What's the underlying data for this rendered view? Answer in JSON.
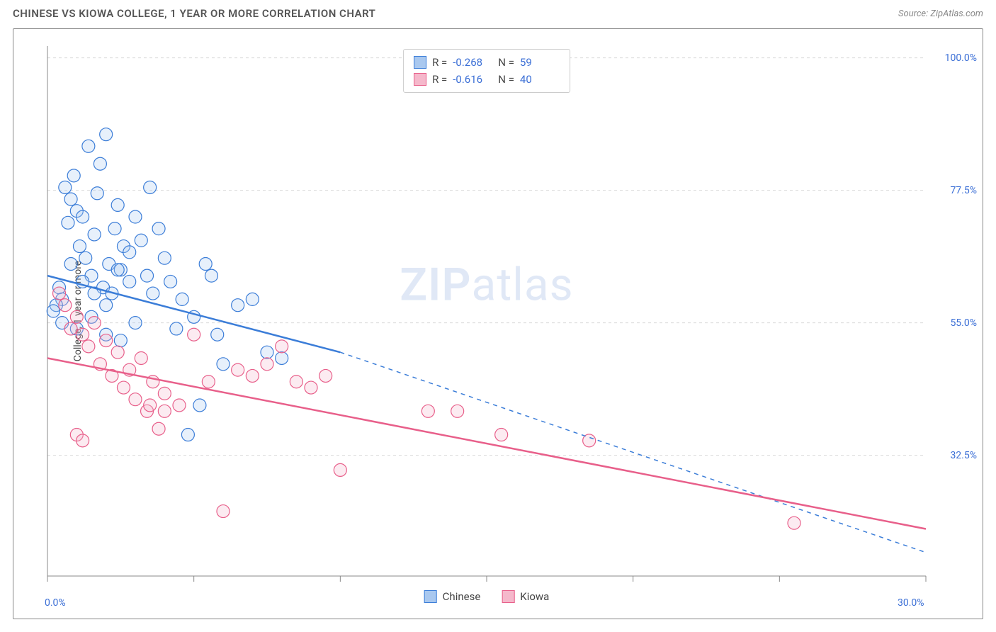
{
  "header": {
    "title": "CHINESE VS KIOWA COLLEGE, 1 YEAR OR MORE CORRELATION CHART",
    "source": "Source: ZipAtlas.com"
  },
  "chart": {
    "type": "scatter",
    "ylabel": "College, 1 year or more",
    "xlim": [
      0,
      30
    ],
    "ylim": [
      12,
      102
    ],
    "xticks": [
      0,
      5,
      10,
      15,
      20,
      25,
      30
    ],
    "xtick_labels_shown": {
      "0": "0.0%",
      "30": "30.0%"
    },
    "yticks": [
      32.5,
      55.0,
      77.5,
      100.0
    ],
    "ytick_labels": [
      "32.5%",
      "55.0%",
      "77.5%",
      "100.0%"
    ],
    "grid_color": "#d9d9d9",
    "border_color": "#888888",
    "background_color": "#ffffff",
    "axis_label_color": "#3b6fd6",
    "marker_radius": 9,
    "marker_stroke_width": 1.2,
    "marker_fill_opacity": 0.28,
    "line_width": 2.5,
    "watermark": "ZIPatlas",
    "series": [
      {
        "name": "Chinese",
        "color": "#3b7dd8",
        "fill": "#a9c8ef",
        "R": "-0.268",
        "N": "59",
        "trend": {
          "x1": 0,
          "y1": 63,
          "x2": 10,
          "y2": 50,
          "dash_to_x": 30,
          "dash_to_y": 16
        },
        "points": [
          [
            0.4,
            61
          ],
          [
            0.5,
            59
          ],
          [
            0.6,
            78
          ],
          [
            0.7,
            72
          ],
          [
            0.8,
            76
          ],
          [
            0.9,
            80
          ],
          [
            1.0,
            74
          ],
          [
            1.1,
            68
          ],
          [
            1.2,
            73
          ],
          [
            1.3,
            66
          ],
          [
            1.4,
            85
          ],
          [
            1.5,
            63
          ],
          [
            1.6,
            70
          ],
          [
            1.7,
            77
          ],
          [
            1.8,
            82
          ],
          [
            1.9,
            61
          ],
          [
            2.0,
            87
          ],
          [
            2.1,
            65
          ],
          [
            2.2,
            60
          ],
          [
            2.3,
            71
          ],
          [
            2.4,
            75
          ],
          [
            2.5,
            64
          ],
          [
            2.6,
            68
          ],
          [
            2.8,
            62
          ],
          [
            3.0,
            73
          ],
          [
            3.2,
            69
          ],
          [
            3.4,
            63
          ],
          [
            3.5,
            78
          ],
          [
            3.6,
            60
          ],
          [
            3.8,
            71
          ],
          [
            4.0,
            66
          ],
          [
            4.2,
            62
          ],
          [
            4.4,
            54
          ],
          [
            4.6,
            59
          ],
          [
            4.8,
            36
          ],
          [
            5.0,
            56
          ],
          [
            5.2,
            41
          ],
          [
            5.4,
            65
          ],
          [
            5.6,
            63
          ],
          [
            5.8,
            53
          ],
          [
            6.0,
            48
          ],
          [
            6.5,
            58
          ],
          [
            7.0,
            59
          ],
          [
            7.5,
            50
          ],
          [
            8.0,
            49
          ],
          [
            0.3,
            58
          ],
          [
            0.2,
            57
          ],
          [
            0.5,
            55
          ],
          [
            1.0,
            54
          ],
          [
            1.5,
            56
          ],
          [
            2.0,
            53
          ],
          [
            2.5,
            52
          ],
          [
            3.0,
            55
          ],
          [
            0.8,
            65
          ],
          [
            1.2,
            62
          ],
          [
            1.6,
            60
          ],
          [
            2.0,
            58
          ],
          [
            2.4,
            64
          ],
          [
            2.8,
            67
          ]
        ]
      },
      {
        "name": "Kiowa",
        "color": "#e85f8a",
        "fill": "#f5b8cb",
        "R": "-0.616",
        "N": "40",
        "trend": {
          "x1": 0,
          "y1": 49,
          "x2": 30,
          "y2": 20,
          "dash_to_x": 30,
          "dash_to_y": 20
        },
        "points": [
          [
            0.4,
            60
          ],
          [
            0.6,
            58
          ],
          [
            0.8,
            54
          ],
          [
            1.0,
            56
          ],
          [
            1.2,
            53
          ],
          [
            1.4,
            51
          ],
          [
            1.6,
            55
          ],
          [
            1.8,
            48
          ],
          [
            2.0,
            52
          ],
          [
            2.2,
            46
          ],
          [
            2.4,
            50
          ],
          [
            2.6,
            44
          ],
          [
            2.8,
            47
          ],
          [
            3.0,
            42
          ],
          [
            3.2,
            49
          ],
          [
            3.4,
            40
          ],
          [
            3.6,
            45
          ],
          [
            3.8,
            37
          ],
          [
            4.0,
            43
          ],
          [
            4.5,
            41
          ],
          [
            5.0,
            53
          ],
          [
            5.5,
            45
          ],
          [
            6.0,
            23
          ],
          [
            6.5,
            47
          ],
          [
            7.0,
            46
          ],
          [
            7.5,
            48
          ],
          [
            8.0,
            51
          ],
          [
            8.5,
            45
          ],
          [
            9.0,
            44
          ],
          [
            9.5,
            46
          ],
          [
            10.0,
            30
          ],
          [
            13.0,
            40
          ],
          [
            14.0,
            40
          ],
          [
            15.5,
            36
          ],
          [
            18.5,
            35
          ],
          [
            25.5,
            21
          ],
          [
            1.0,
            36
          ],
          [
            1.2,
            35
          ],
          [
            3.5,
            41
          ],
          [
            4.0,
            40
          ]
        ]
      }
    ],
    "legend_bottom": [
      {
        "label": "Chinese",
        "fill": "#a9c8ef",
        "stroke": "#3b7dd8"
      },
      {
        "label": "Kiowa",
        "fill": "#f5b8cb",
        "stroke": "#e85f8a"
      }
    ]
  }
}
